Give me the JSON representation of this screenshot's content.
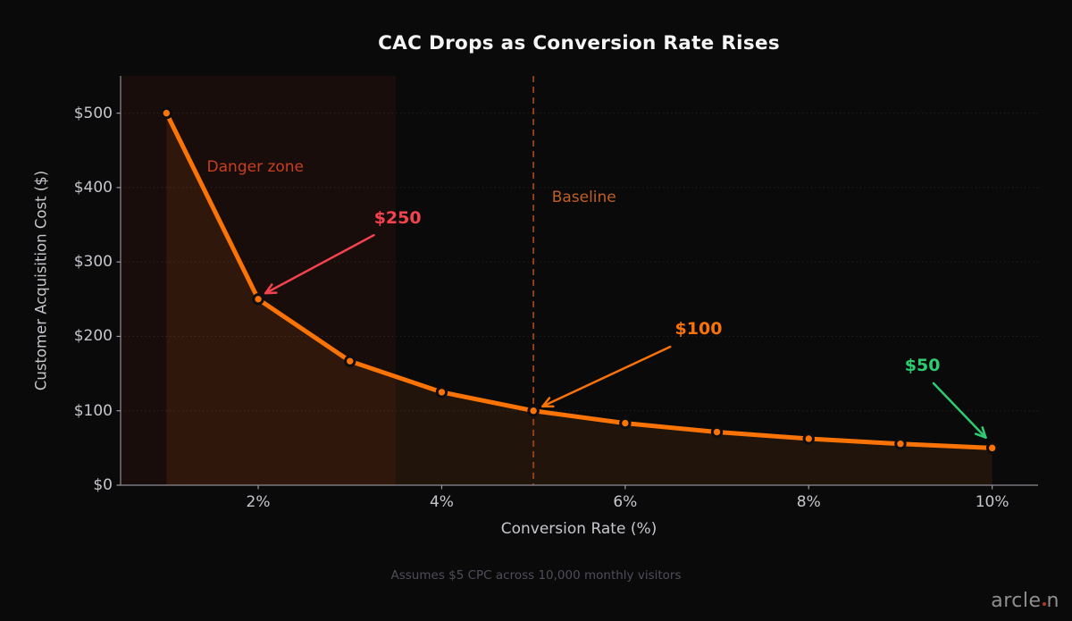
{
  "title": "CAC Drops as Conversion Rate Rises",
  "footer_note": "Assumes $5 CPC across 10,000 monthly visitors",
  "brand": {
    "text_before_dot": "arcle",
    "text_after_dot": "n",
    "dot_color": "#b03a24"
  },
  "chart_data": {
    "type": "line",
    "title": "CAC Drops as Conversion Rate Rises",
    "xlabel": "Conversion Rate (%)",
    "ylabel": "Customer Acquisition Cost ($)",
    "x": [
      1,
      2,
      3,
      4,
      5,
      6,
      7,
      8,
      9,
      10
    ],
    "y": [
      500,
      250,
      166.7,
      125,
      100,
      83.3,
      71.4,
      62.5,
      55.6,
      50
    ],
    "xlim": [
      0.5,
      10.5
    ],
    "ylim": [
      0,
      550
    ],
    "xticks": {
      "values": [
        2,
        4,
        6,
        8,
        10
      ],
      "labels": [
        "2%",
        "4%",
        "6%",
        "8%",
        "10%"
      ]
    },
    "yticks": {
      "values": [
        0,
        100,
        200,
        300,
        400,
        500
      ],
      "labels": [
        "$0",
        "$100",
        "$200",
        "$300",
        "$400",
        "$500"
      ]
    },
    "grid": "horizontal-dotted",
    "legend": "none",
    "line_color": "#f97306",
    "marker_edge_color": "#0d0d10",
    "area_fill_color": "rgba(249,115,6,0.10)",
    "danger_zone": {
      "x_start": 0.5,
      "x_end": 3.5,
      "fill": "rgba(228,62,32,0.07)",
      "label": "Danger zone",
      "label_color": "#c63f22",
      "label_pos": [
        1.44,
        427
      ],
      "label_anchor": "left"
    },
    "baseline": {
      "x": 5,
      "line_color": "#9c431a",
      "label": "Baseline",
      "label_color": "#c05f24",
      "label_pos": [
        5.2,
        387
      ],
      "label_anchor": "left"
    },
    "annotations": [
      {
        "text": "$250",
        "color": "#f4434e",
        "point": [
          2,
          250
        ],
        "text_pos": [
          3.52,
          359
        ],
        "arrow_from": [
          3.26,
          336
        ],
        "arrow_to": [
          2.08,
          258
        ]
      },
      {
        "text": "$100",
        "color": "#f97306",
        "point": [
          5,
          100
        ],
        "text_pos": [
          6.8,
          210
        ],
        "arrow_from": [
          6.49,
          186
        ],
        "arrow_to": [
          5.1,
          106
        ]
      },
      {
        "text": "$50",
        "color": "#2ecc71",
        "point": [
          10,
          50
        ],
        "text_pos": [
          9.24,
          161
        ],
        "arrow_from": [
          9.36,
          137
        ],
        "arrow_to": [
          9.93,
          64
        ]
      }
    ]
  }
}
